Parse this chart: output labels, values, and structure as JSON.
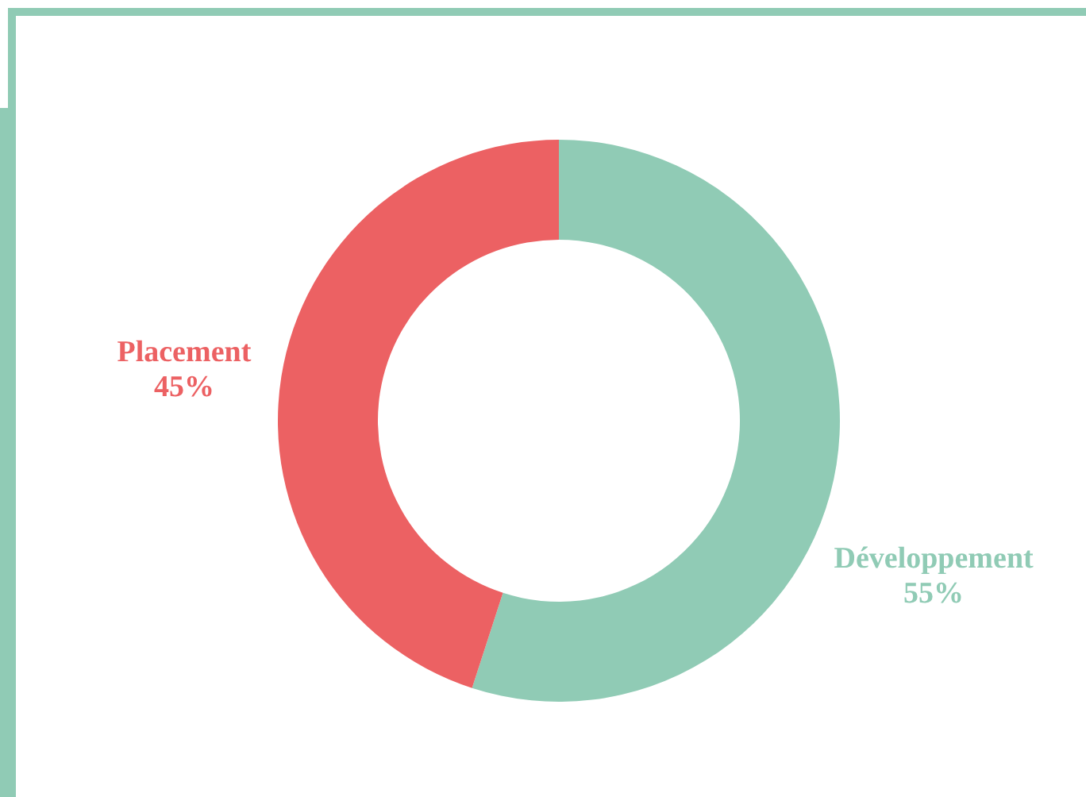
{
  "chart_data": {
    "type": "donut",
    "categories": [
      "Développement",
      "Placement"
    ],
    "values": [
      55,
      45
    ],
    "value_labels": [
      "55%",
      "45%"
    ],
    "colors": [
      "#90cbb5",
      "#ec6163"
    ]
  }
}
